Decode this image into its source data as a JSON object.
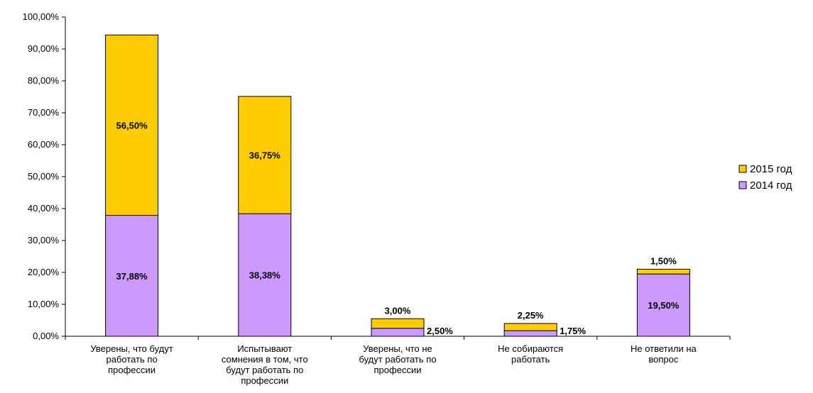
{
  "chart_data": {
    "type": "bar",
    "stacked": true,
    "categories": [
      [
        "Уверены, что будут",
        "работать по",
        "профессии"
      ],
      [
        "Испытывают",
        "сомнения в том, что",
        "будут работать по",
        "профессии"
      ],
      [
        "Уверены, что не",
        "будут работать по",
        "профессии"
      ],
      [
        "Не собираются",
        "работать"
      ],
      [
        "Не ответили на",
        "вопрос"
      ]
    ],
    "series": [
      {
        "name": "2014 год",
        "color": "#cc99ff",
        "values": [
          37.88,
          38.38,
          2.5,
          1.75,
          19.5
        ],
        "labels": [
          "37,88%",
          "38,38%",
          "2,50%",
          "1,75%",
          "19,50%"
        ]
      },
      {
        "name": "2015 год",
        "color": "#ffcc00",
        "values": [
          56.5,
          36.75,
          3.0,
          2.25,
          1.5
        ],
        "labels": [
          "56,50%",
          "36,75%",
          "3,00%",
          "2,25%",
          "1,50%"
        ]
      }
    ],
    "ylim": [
      0,
      100
    ],
    "yticks": [
      "0,00%",
      "10,00%",
      "20,00%",
      "30,00%",
      "40,00%",
      "50,00%",
      "60,00%",
      "70,00%",
      "80,00%",
      "90,00%",
      "100,00%"
    ],
    "legend": {
      "placement": "right",
      "order": [
        "2015 год",
        "2014 год"
      ]
    },
    "grid": false
  }
}
